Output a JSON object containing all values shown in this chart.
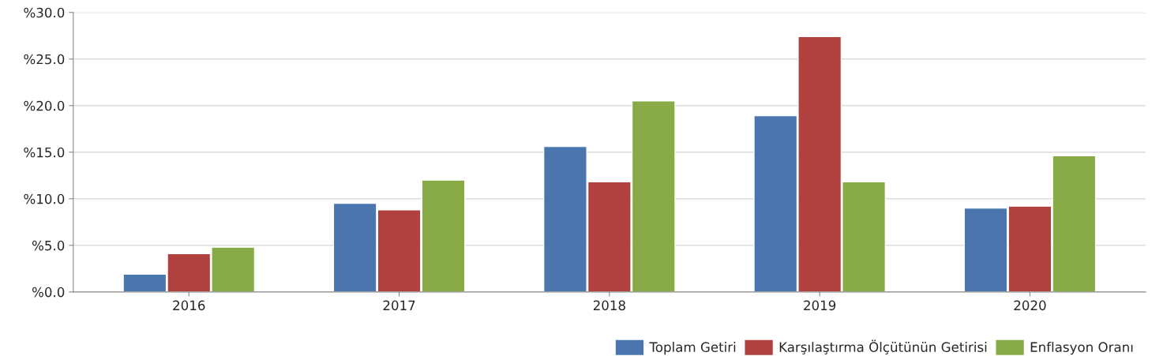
{
  "chart_data": {
    "type": "bar",
    "categories": [
      "2016",
      "2017",
      "2018",
      "2019",
      "2020"
    ],
    "series": [
      {
        "name": "Toplam Getiri",
        "color": "#4a76ad",
        "values": [
          1.9,
          9.5,
          15.6,
          18.9,
          9.0
        ]
      },
      {
        "name": "Karşılaştırma Ölçütünün Getirisi",
        "color": "#b0413e",
        "values": [
          4.1,
          8.8,
          11.8,
          27.4,
          9.2
        ]
      },
      {
        "name": "Enflasyon Oranı",
        "color": "#89ab47",
        "values": [
          4.8,
          12.0,
          20.5,
          11.8,
          14.6
        ]
      }
    ],
    "ylim": [
      0,
      30
    ],
    "yticks": [
      {
        "value": 0,
        "label": "%0.0"
      },
      {
        "value": 5,
        "label": "%5.0"
      },
      {
        "value": 10,
        "label": "%10.0"
      },
      {
        "value": 15,
        "label": "%15.0"
      },
      {
        "value": 20,
        "label": "%20.0"
      },
      {
        "value": 25,
        "label": "%25.0"
      },
      {
        "value": 30,
        "label": "%30.0"
      }
    ],
    "grid": "y",
    "legend": "bottom right"
  }
}
